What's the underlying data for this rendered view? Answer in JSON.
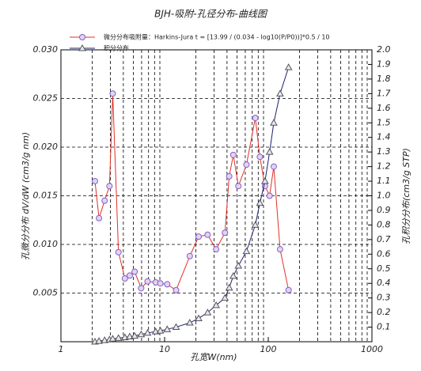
{
  "chart_data": {
    "type": "line",
    "title": "BJH-吸附-孔径分布-曲线图",
    "annotation": "吸附量：Harkins-Jura  t = [13.99 / (0.034 - log10(P/P0))]*0.5 / 10",
    "xlabel": "孔宽W(nm)",
    "ylabel": "孔微分分布 dV/dW (cm3/g nm)",
    "y2label": "孔积分分布(cm3/g STP)",
    "xscale": "log",
    "xlim": [
      1,
      1000
    ],
    "xticks": [
      1,
      10,
      100,
      1000
    ],
    "xminorticks": [
      2,
      3,
      4,
      5,
      6,
      7,
      8,
      9,
      20,
      30,
      40,
      50,
      60,
      70,
      80,
      90,
      200,
      300,
      400,
      500,
      600,
      700,
      800,
      900
    ],
    "ylim": [
      0,
      0.03
    ],
    "yticks": [
      0.005,
      {
        "value": 0.01,
        "label": "0.010"
      },
      0.015,
      {
        "value": 0.02,
        "label": "0.020"
      },
      0.025,
      {
        "value": 0.03,
        "label": "0.030"
      }
    ],
    "y2lim": [
      0,
      2
    ],
    "y2ticks": [
      0.1,
      0.2,
      0.3,
      0.4,
      0.5,
      0.6,
      0.7,
      0.8,
      0.9,
      {
        "value": 1,
        "label": "1.0"
      },
      1.1,
      1.2,
      1.3,
      1.4,
      1.5,
      1.6,
      1.7,
      1.8,
      1.9,
      {
        "value": 2,
        "label": "2.0"
      }
    ],
    "grid": true,
    "x": [
      2.13,
      2.33,
      2.64,
      2.94,
      3.16,
      3.59,
      4.14,
      4.61,
      5.14,
      5.94,
      6.85,
      8.2,
      9.1,
      10.6,
      12.9,
      17.5,
      21.3,
      26,
      31.4,
      38.2,
      42,
      46,
      51.5,
      61.6,
      75,
      83,
      93,
      103,
      113,
      130,
      157
    ],
    "series": [
      {
        "name": "微分分布",
        "color": "#e0302a",
        "marker_color": "#8a5cc8",
        "marker": "circle",
        "values": [
          0.0165,
          0.0127,
          0.0145,
          0.016,
          0.0255,
          0.0092,
          0.0065,
          0.0068,
          0.0072,
          0.0055,
          0.0062,
          0.0061,
          0.006,
          0.0059,
          0.0053,
          0.0088,
          0.0108,
          0.011,
          0.0095,
          0.0112,
          0.017,
          0.0192,
          0.016,
          0.0182,
          0.023,
          0.019,
          0.016,
          0.015,
          0.018,
          0.0095,
          0.0053
        ]
      },
      {
        "name": "积分分布",
        "color": "#1a1f6e",
        "marker_color": "#555555",
        "marker": "triangle",
        "axis": "y2",
        "values": [
          0,
          0.005,
          0.01,
          0.015,
          0.02,
          0.025,
          0.03,
          0.035,
          0.04,
          0.05,
          0.06,
          0.07,
          0.075,
          0.085,
          0.1,
          0.13,
          0.16,
          0.2,
          0.25,
          0.3,
          0.37,
          0.45,
          0.52,
          0.62,
          0.8,
          0.95,
          1.1,
          1.3,
          1.5,
          1.7,
          1.88
        ]
      }
    ]
  }
}
